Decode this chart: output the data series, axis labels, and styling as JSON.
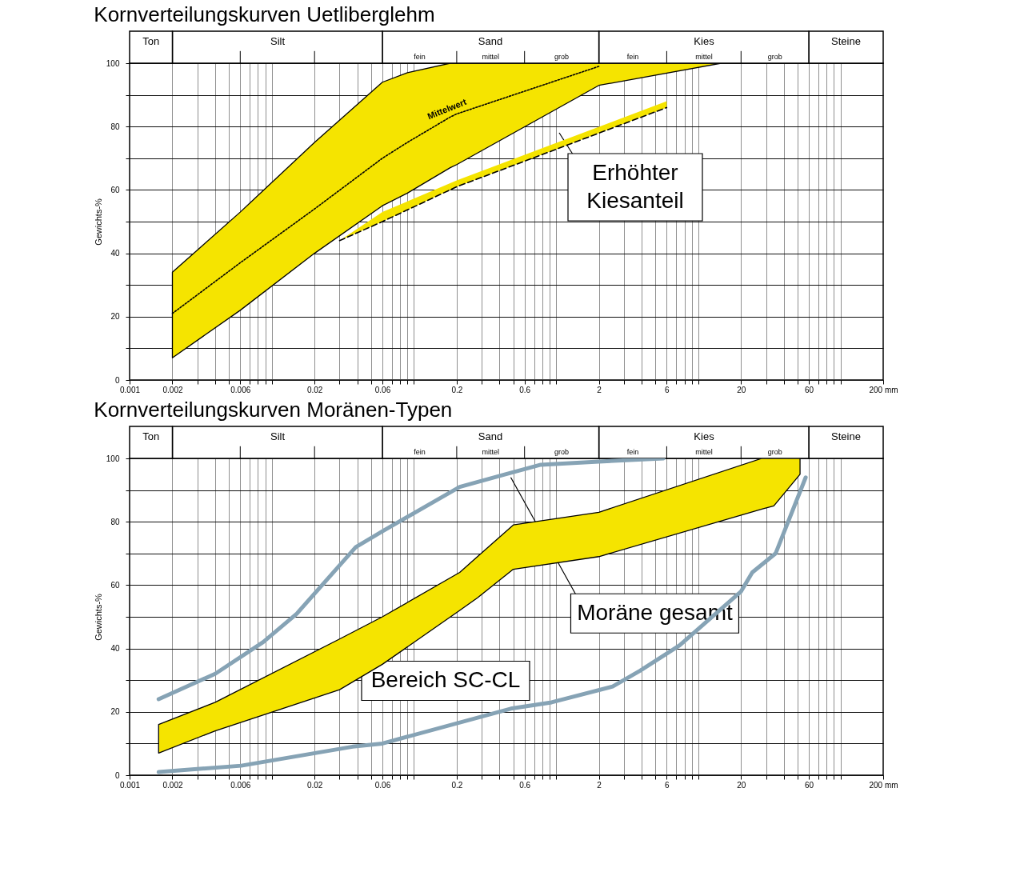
{
  "chart_data": [
    {
      "type": "line",
      "title": "Kornverteilungskurven Uetliberglehm",
      "ylabel": "Gewichts-%",
      "log": "x",
      "xlim": [
        0.001,
        200
      ],
      "ylim": [
        0,
        100
      ],
      "xticks": [
        0.001,
        0.002,
        {
          "value": 0.003,
          "label": null
        },
        {
          "value": 0.004,
          "label": null
        },
        {
          "value": 0.005,
          "label": null
        },
        0.006,
        {
          "value": 0.007,
          "label": null
        },
        {
          "value": 0.008,
          "label": null
        },
        {
          "value": 0.009,
          "label": null
        },
        {
          "value": 0.01,
          "label": null
        },
        0.02,
        {
          "value": 0.03,
          "label": null
        },
        {
          "value": 0.04,
          "label": null
        },
        {
          "value": 0.05,
          "label": null
        },
        0.06,
        {
          "value": 0.07,
          "label": null
        },
        {
          "value": 0.08,
          "label": null
        },
        {
          "value": 0.09,
          "label": null
        },
        {
          "value": 0.1,
          "label": null
        },
        0.2,
        {
          "value": 0.3,
          "label": null
        },
        {
          "value": 0.4,
          "label": null
        },
        {
          "value": 0.5,
          "label": null
        },
        0.6,
        {
          "value": 0.7,
          "label": null
        },
        {
          "value": 0.8,
          "label": null
        },
        {
          "value": 0.9,
          "label": null
        },
        {
          "value": 1,
          "label": null
        },
        2,
        {
          "value": 3,
          "label": null
        },
        {
          "value": 4,
          "label": null
        },
        {
          "value": 5,
          "label": null
        },
        6,
        {
          "value": 7,
          "label": null
        },
        {
          "value": 8,
          "label": null
        },
        {
          "value": 9,
          "label": null
        },
        {
          "value": 10,
          "label": null
        },
        20,
        {
          "value": 30,
          "label": null
        },
        {
          "value": 40,
          "label": null
        },
        {
          "value": 50,
          "label": null
        },
        60,
        {
          "value": 70,
          "label": null
        },
        {
          "value": 80,
          "label": null
        },
        {
          "value": 90,
          "label": null
        },
        {
          "value": 100,
          "label": null
        },
        {
          "value": 200,
          "label": "200 mm"
        }
      ],
      "yticks": [
        0,
        {
          "value": 10,
          "label": null
        },
        20,
        {
          "value": 30,
          "label": null
        },
        40,
        {
          "value": 50,
          "label": null
        },
        60,
        {
          "value": 70,
          "label": null
        },
        80,
        {
          "value": 90,
          "label": null
        },
        100
      ],
      "grid": true,
      "annotations": [
        "Erhöhter Kiesanteil",
        "Ton",
        "Silt",
        "Sand",
        "fein",
        "mittel",
        "grob",
        "Kies",
        "fein",
        "mittel",
        "grob",
        "Steine"
      ],
      "series": [
        {
          "name": "Mittelwert",
          "color": "#000000",
          "line_style": "dotted",
          "x": [
            0.002,
            0.006,
            0.02,
            0.06,
            0.09,
            0.18,
            0.2,
            2,
            14.5
          ],
          "values": [
            21,
            37,
            54,
            70,
            75,
            83,
            84,
            99,
            null
          ],
          "lower": [
            7,
            22,
            40,
            55,
            59,
            67,
            68,
            93,
            100
          ],
          "upper": [
            34,
            53,
            75,
            94,
            97,
            100,
            100,
            100,
            100
          ]
        },
        {
          "color": "#000000",
          "line_style": "dashed",
          "x": [
            0.03,
            0.06,
            0.2,
            6
          ],
          "values": [
            44,
            50,
            61,
            86
          ],
          "lower": [
            44,
            50,
            61,
            86
          ],
          "upper": [
            44,
            53,
            63,
            88
          ]
        }
      ]
    },
    {
      "type": "line",
      "title": "Kornverteilungskurven Moränen-Typen",
      "ylabel": "Gewichts-%",
      "log": "x",
      "xlim": [
        0.001,
        200
      ],
      "ylim": [
        0,
        100
      ],
      "xticks": [
        0.001,
        0.002,
        {
          "value": 0.003,
          "label": null
        },
        {
          "value": 0.004,
          "label": null
        },
        {
          "value": 0.005,
          "label": null
        },
        0.006,
        {
          "value": 0.007,
          "label": null
        },
        {
          "value": 0.008,
          "label": null
        },
        {
          "value": 0.009,
          "label": null
        },
        {
          "value": 0.01,
          "label": null
        },
        0.02,
        {
          "value": 0.03,
          "label": null
        },
        {
          "value": 0.04,
          "label": null
        },
        {
          "value": 0.05,
          "label": null
        },
        0.06,
        {
          "value": 0.07,
          "label": null
        },
        {
          "value": 0.08,
          "label": null
        },
        {
          "value": 0.09,
          "label": null
        },
        {
          "value": 0.1,
          "label": null
        },
        0.2,
        {
          "value": 0.3,
          "label": null
        },
        {
          "value": 0.4,
          "label": null
        },
        {
          "value": 0.5,
          "label": null
        },
        0.6,
        {
          "value": 0.7,
          "label": null
        },
        {
          "value": 0.8,
          "label": null
        },
        {
          "value": 0.9,
          "label": null
        },
        {
          "value": 1,
          "label": null
        },
        2,
        {
          "value": 3,
          "label": null
        },
        {
          "value": 4,
          "label": null
        },
        {
          "value": 5,
          "label": null
        },
        6,
        {
          "value": 7,
          "label": null
        },
        {
          "value": 8,
          "label": null
        },
        {
          "value": 9,
          "label": null
        },
        {
          "value": 10,
          "label": null
        },
        20,
        {
          "value": 30,
          "label": null
        },
        {
          "value": 40,
          "label": null
        },
        {
          "value": 50,
          "label": null
        },
        60,
        {
          "value": 70,
          "label": null
        },
        {
          "value": 80,
          "label": null
        },
        {
          "value": 90,
          "label": null
        },
        {
          "value": 100,
          "label": null
        },
        {
          "value": 200,
          "label": "200 mm"
        }
      ],
      "yticks": [
        0,
        {
          "value": 10,
          "label": null
        },
        20,
        {
          "value": 30,
          "label": null
        },
        40,
        {
          "value": 50,
          "label": null
        },
        60,
        {
          "value": 70,
          "label": null
        },
        80,
        {
          "value": 90,
          "label": null
        },
        100
      ],
      "grid": true,
      "annotations": [
        {
          "text": "Moräne gesamt",
          "x": 0.48,
          "y": 94
        },
        "Bereich SC-CL",
        "Ton",
        "Silt",
        "Sand",
        "fein",
        "mittel",
        "grob",
        "Kies",
        "fein",
        "mittel",
        "grob",
        "Steine"
      ],
      "series": [
        {
          "color": "#f5e400",
          "x": [
            0.0016,
            0.004,
            0.03,
            0.06,
            0.21,
            0.28,
            0.5,
            2,
            28,
            34,
            52
          ],
          "values": [
            null,
            null,
            null,
            null,
            null,
            null,
            null,
            null,
            null,
            null,
            null
          ],
          "lower": [
            7,
            14,
            27,
            35,
            52,
            56,
            65,
            69,
            84,
            85,
            95
          ],
          "upper": [
            16,
            23,
            43,
            50,
            64,
            69,
            79,
            83,
            100,
            100,
            100
          ]
        },
        {
          "color": "#86a3b5",
          "x": [
            0.0016,
            0.004,
            0.0087,
            0.015,
            0.039,
            0.06,
            0.21,
            0.44,
            0.78,
            2,
            5.7
          ],
          "values": [
            24,
            32,
            42,
            51,
            72,
            77,
            91,
            95,
            98,
            99,
            100
          ]
        },
        {
          "color": "#86a3b5",
          "x": [
            0.0016,
            0.0061,
            0.037,
            0.06,
            0.48,
            0.93,
            2.5,
            3.9,
            7.4,
            20,
            24,
            35,
            57
          ],
          "values": [
            1,
            3,
            9,
            10,
            21,
            23,
            28,
            33,
            41,
            58,
            64,
            70,
            94
          ]
        }
      ]
    }
  ]
}
